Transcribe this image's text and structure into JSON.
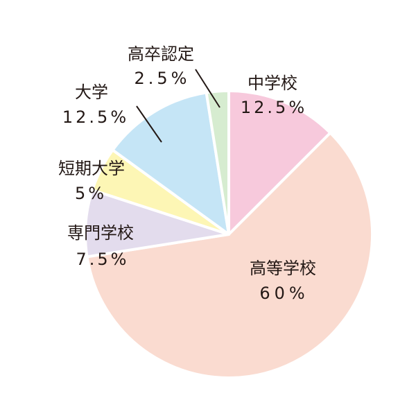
{
  "chart_data": {
    "type": "pie",
    "title": "",
    "categories": [
      "中学校",
      "高等学校",
      "専門学校",
      "短期大学",
      "大学",
      "高卒認定"
    ],
    "values": [
      12.5,
      60,
      7.5,
      5,
      12.5,
      2.5
    ],
    "value_labels": [
      "12.5%",
      "60%",
      "7.5%",
      "5%",
      "12.5%",
      "2.5%"
    ],
    "colors": [
      "#f7c9dc",
      "#fadbd0",
      "#e3dced",
      "#fdf6b5",
      "#c5e5f6",
      "#d6ecd0"
    ],
    "start": "12 o'clock",
    "direction": "clockwise",
    "legend": "none"
  }
}
